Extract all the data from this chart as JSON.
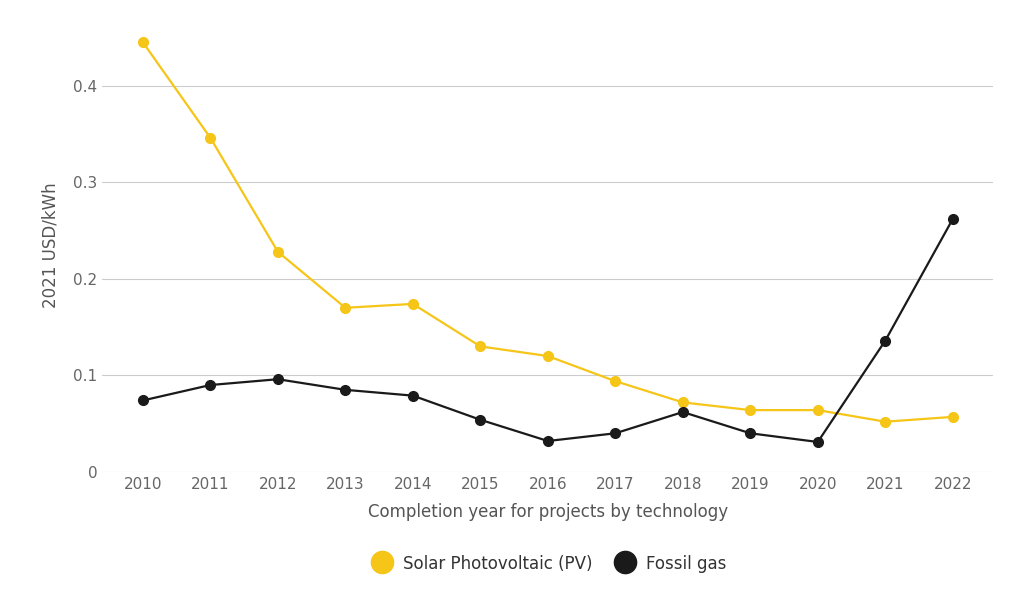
{
  "years": [
    2010,
    2011,
    2012,
    2013,
    2014,
    2015,
    2016,
    2017,
    2018,
    2019,
    2020,
    2021,
    2022
  ],
  "solar_pv": [
    0.445,
    0.346,
    0.228,
    0.17,
    0.174,
    0.13,
    0.12,
    0.094,
    0.072,
    0.064,
    0.064,
    0.052,
    0.057
  ],
  "fossil_gas": [
    0.074,
    0.09,
    0.096,
    0.085,
    0.079,
    0.054,
    0.032,
    0.04,
    0.062,
    0.04,
    0.031,
    0.136,
    0.262
  ],
  "solar_color": "#F5C518",
  "gas_color": "#1a1a1a",
  "bg_color": "#FFFFFF",
  "grid_color": "#CCCCCC",
  "xlabel": "Completion year for projects by technology",
  "ylabel": "2021 USD/kWh",
  "ylim": [
    0,
    0.47
  ],
  "yticks": [
    0,
    0.1,
    0.2,
    0.3,
    0.4
  ],
  "legend_solar": "Solar Photovoltaic (PV)",
  "legend_gas": "Fossil gas",
  "marker_size": 7,
  "line_width": 1.6,
  "tick_label_color": "#666666",
  "axis_label_color": "#555555",
  "tick_fontsize": 11,
  "label_fontsize": 12
}
